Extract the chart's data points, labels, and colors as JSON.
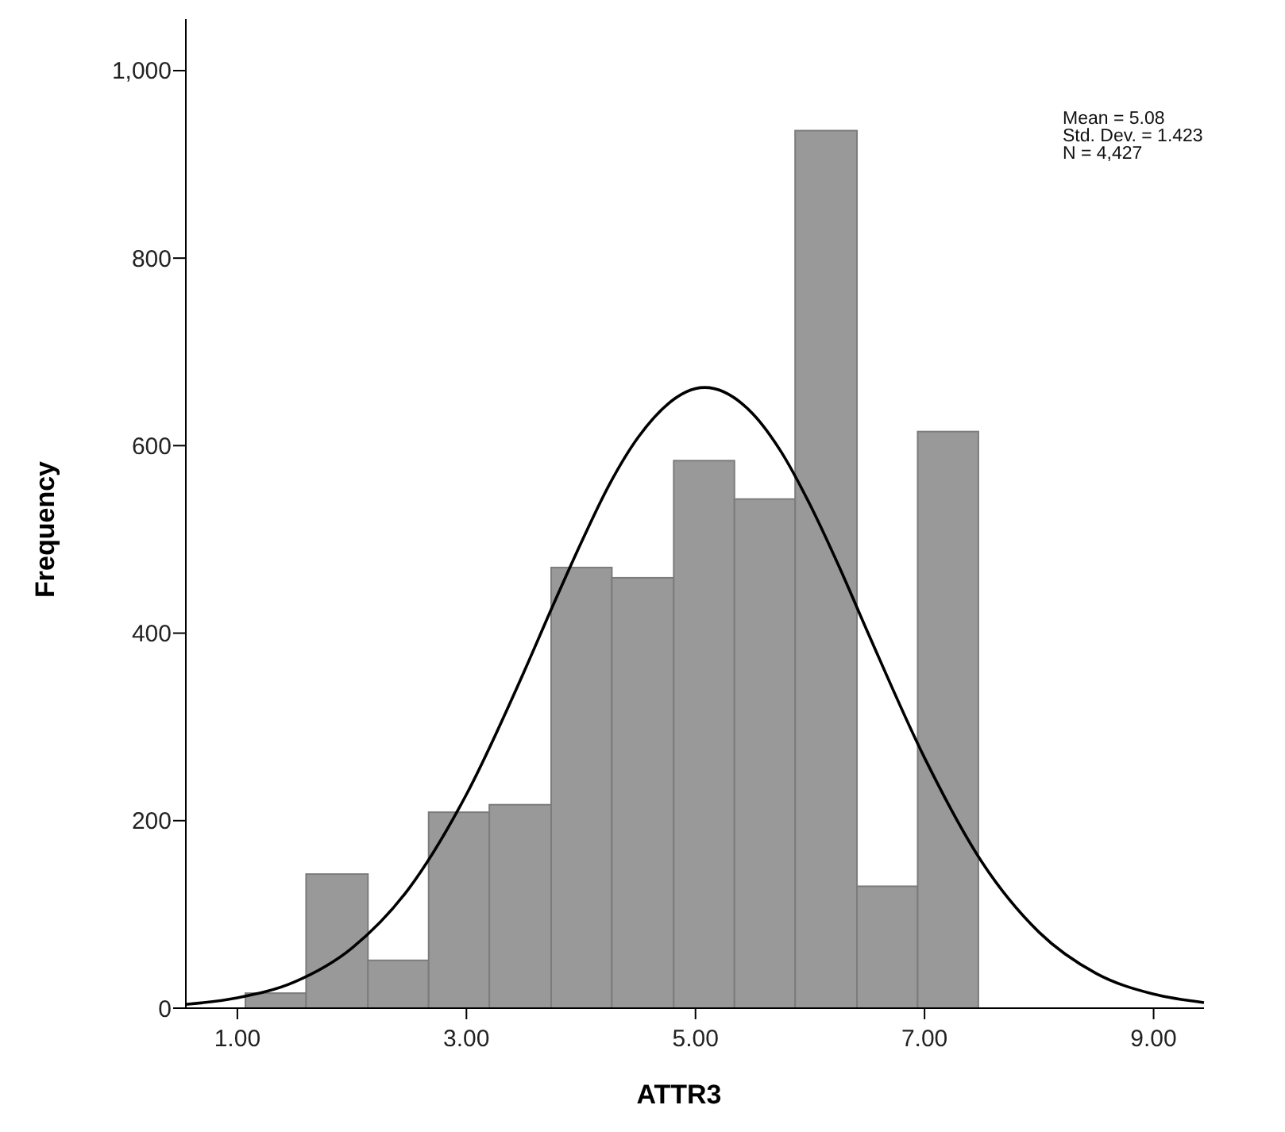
{
  "chart_data": {
    "type": "histogram",
    "xlabel": "ATTR3",
    "ylabel": "Frequency",
    "bins": [
      1.07,
      1.6,
      2.14,
      2.67,
      3.2,
      3.74,
      4.27,
      4.81,
      5.34,
      5.87,
      6.41,
      6.94,
      7.47
    ],
    "values": [
      16,
      143,
      51,
      209,
      217,
      470,
      459,
      584,
      543,
      936,
      130,
      615
    ],
    "color": "#999999",
    "series": [
      {
        "type": "line",
        "color": "#000000",
        "x": [
          0.55,
          1.0,
          1.5,
          2.0,
          2.5,
          3.0,
          3.5,
          3.75,
          4.0,
          4.25,
          4.5,
          5.08,
          5.5,
          5.75,
          6.0,
          6.25,
          6.5,
          7.0,
          7.5,
          8.0,
          8.5,
          9.0,
          9.44
        ],
        "values": [
          4,
          11,
          28,
          64,
          128,
          228,
          358,
          428,
          496,
          559,
          609,
          662,
          634,
          593,
          537,
          472,
          402,
          267,
          156,
          81,
          37,
          15,
          6
        ]
      }
    ],
    "xlim": [
      0.55,
      9.44
    ],
    "xticks": [
      {
        "value": 1,
        "label": "1.00"
      },
      {
        "value": 3,
        "label": "3.00"
      },
      {
        "value": 5,
        "label": "5.00"
      },
      {
        "value": 7,
        "label": "7.00"
      },
      {
        "value": 9,
        "label": "9.00"
      }
    ],
    "ylim": [
      0,
      1055
    ],
    "yticks": [
      0,
      200,
      400,
      600,
      800,
      {
        "value": 1000,
        "label": "1,000"
      }
    ],
    "grid": false,
    "annotations": [
      "Mean = 5.08",
      "Std. Dev. = 1.423",
      "N = 4,427"
    ]
  }
}
